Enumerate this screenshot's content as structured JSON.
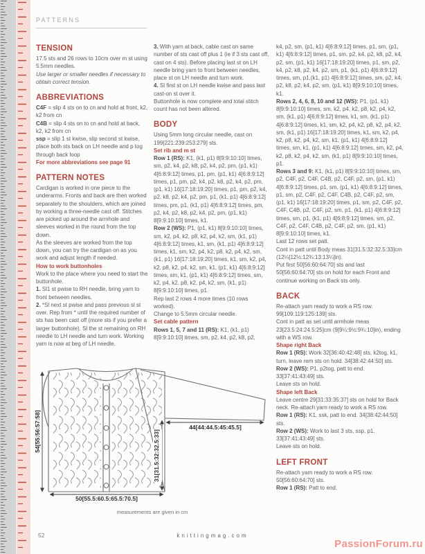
{
  "page": {
    "header": "PATTERNS",
    "page_number": "52",
    "footer_site": "knittingmag.com",
    "watermark": "PassionForum.ru"
  },
  "colors": {
    "heading": "#b2453e",
    "body": "#5c5c5f",
    "bold": "#4b4b4e",
    "tapegrey": "#d2d3d5",
    "tapepink": "#f6ddd7",
    "tickred": "#c4473f",
    "wm": "#f0948c"
  },
  "columns": [
    {
      "blocks": [
        {
          "type": "h1",
          "text": "TENSION"
        },
        {
          "type": "p",
          "segs": [
            {
              "t": "17.5 sts and 26 rows to 10cm over m st using 5.5mm needles."
            }
          ]
        },
        {
          "type": "p",
          "segs": [
            {
              "t": "Use larger or smaller needles if necessary to obtain correct tension.",
              "s": "i"
            }
          ]
        },
        {
          "type": "h1",
          "text": "ABBREVIATIONS"
        },
        {
          "type": "p",
          "segs": [
            {
              "t": "C4F",
              "s": "b"
            },
            {
              "t": " = slip 4 sts on to cn and hold at front, k2, k2 from cn"
            }
          ]
        },
        {
          "type": "p",
          "segs": [
            {
              "t": "C4B",
              "s": "b"
            },
            {
              "t": " = slip 4 sts on to cn and hold at back, k2, k2 from cn"
            }
          ]
        },
        {
          "type": "p",
          "segs": [
            {
              "t": "ssp",
              "s": "b"
            },
            {
              "t": " = slip 1 st kwise, slip second st kwise, place both sts back on LH needle and p tog through back loop"
            }
          ]
        },
        {
          "type": "sub",
          "text": "For more abbreviations see page 91"
        },
        {
          "type": "h1",
          "text": "PATTERN NOTES"
        },
        {
          "type": "p",
          "segs": [
            {
              "t": "Cardigan is worked in one piece to the underarms. Fronts and back are then worked separately to the shoulders, which are joined by working a three-needle cast off. Stitches are picked up around the armhole and sleeves worked in the round from the top down."
            }
          ]
        },
        {
          "type": "p",
          "segs": [
            {
              "t": "As the sleeves are worked from the top down, you can try the cardigan on as you work and adjust length if needed."
            }
          ]
        },
        {
          "type": "sub",
          "text": "How to work buttonholes"
        },
        {
          "type": "p",
          "segs": [
            {
              "t": "Work to the place where you need to start the buttonhole."
            }
          ]
        },
        {
          "type": "p",
          "segs": [
            {
              "t": "1.",
              "s": "b"
            },
            {
              "t": " Sl1 st pwise to RH needle, bring yarn to front between needles."
            }
          ]
        },
        {
          "type": "p",
          "segs": [
            {
              "t": "2.",
              "s": "b"
            },
            {
              "t": " *Sl next st pwise and pass previous sl st over. Rep from * until the required number of sts has been cast off (more sts if you prefer a larger buttonhole). Sl the st remaining on RH needle to LH needle and turn work. Working yarn is now at beg of LH needle."
            }
          ]
        }
      ]
    },
    {
      "blocks": [
        {
          "type": "p",
          "segs": [
            {
              "t": "3.",
              "s": "b"
            },
            {
              "t": " With yarn at back, cable cast on same number of sts cast off plus 1 (ie if 3 sts cast off, cast on 4 sts). Before placing last st on LH needle bring yarn to front between needles, place st on LH needle and turn work."
            }
          ]
        },
        {
          "type": "p",
          "segs": [
            {
              "t": "4.",
              "s": "b"
            },
            {
              "t": " Sl first st on LH needle kwise and pass last cast-on st over it."
            }
          ]
        },
        {
          "type": "p",
          "segs": [
            {
              "t": "Buttonhole is now complete and total stitch count has not been altered."
            }
          ]
        },
        {
          "type": "h1",
          "text": "BODY"
        },
        {
          "type": "p",
          "segs": [
            {
              "t": "Using 5mm long circular needle, cast on 199[221:239:253:279] sts."
            }
          ]
        },
        {
          "type": "sub",
          "text": "Set rib and m st"
        },
        {
          "type": "p",
          "segs": [
            {
              "t": "Row 1 (RS):",
              "s": "b"
            },
            {
              "t": " K1, (k1, p1) 8[9:9:10:10] times, sm, p2, k4, p2, k8, p2, k4, p2, pm, (p1, k1) 4[6:8:9:12] times, p1, pm, (p1, k1) 4[6:8:9:12] times, p1, pm, p2, k4, p2, k8, p2, k4, p2, pm, (p1, k1) 16[17:18:19:20] times, p1, pm, p2, k4, p2, k8, p2, k4, p2, pm, p1, (k1, p1) 4[6:8:9:12] times, pm, p1, (k1, p1) 4[6:8:9:12] times, pm, p2, k4, p2, k8, p2, k4, p2, pm, (p1, k1) 8[9:9:10:10] times, k1."
            }
          ]
        },
        {
          "type": "p",
          "segs": [
            {
              "t": "Row 2 (WS):",
              "s": "b"
            },
            {
              "t": " P1, (p1, k1) 8[9:9:10:10] times, sm, k2, p4, k2, p8, k2, p4, k2, sm, (k1, p1) 4[6:8:9:12] times, k1, sm, (k1, p1) 4[6:8:9:12] times, k1, sm, k2, p4, k2, p8, k2, p4, k2, sm, (k1, p1) 16[17:18:19:20] times, k1, sm, k2, p4, k2, p8, k2, p4, k2, sm, k1, (p1, k1) 4[6:8:9:12] times, sm, k1, (p1, k1) 4[6:8:9:12] times, sm, k2, p4, k2, p8, k2, p4, k2, sm, (k1, p1) 8[9:9:10:10] times, p1."
            }
          ]
        },
        {
          "type": "p",
          "segs": [
            {
              "t": "Rep last 2 rows 4 more times (10 rows worked)."
            }
          ]
        },
        {
          "type": "p",
          "segs": [
            {
              "t": "Change to 5.5mm circular needle."
            }
          ]
        },
        {
          "type": "sub",
          "text": "Set cable pattern"
        },
        {
          "type": "p",
          "segs": [
            {
              "t": "Rows 1, 5, 7 and 11 (RS):",
              "s": "b"
            },
            {
              "t": " K1, (k1, p1) 8[9:9:10:10] times, sm, p2, k4, p2, k8, p2,"
            }
          ]
        }
      ]
    },
    {
      "blocks": [
        {
          "type": "p",
          "segs": [
            {
              "t": "k4, p2, sm, (p1, k1) 4[6:8:9:12] times, p1, sm, (p1, k1) 4[6:8:9:12] times, p1, sm, p2, k4, p2, k8, p2, k4, p2, sm, (p1, k1) 16[17:18:19:20] times, p1, sm, p2, k4, p2, k8, p2, k4, p2, sm, p1, (k1, p1) 4[6:8:9:12] times, sm, p1,(k1, p1) 4[6:8:9:12] times, sm, p2, k4, p2, k8, p2, k4, p2, sm, (p1, k1) 8[9:9:10:10] times, k1."
            }
          ]
        },
        {
          "type": "p",
          "segs": [
            {
              "t": "Rows 2, 4, 6, 8, 10 and 12 (WS):",
              "s": "b"
            },
            {
              "t": " P1, (p1, k1) 8[9:9:10:10] times, sm, k2, p4, k2, p8, k2, p4, k2, sm, (k1, p1) 4[6:8:9:12] times, k1, sm, (k1, p1) 4[6:8:9:12] times, k1, sm, k2, p4, k2, p8, k2, p4, k2, sm, (k1, p1) 16[17:18:19:20] times, k1, sm, k2, p4, k2, p8, k2, p4, k2, sm, k1, (p1, k1) 4[6:8:9:12] times, sm, k1, (p1, k1) 4[6:8:9:12] times, sm, k2, p4, k2, p8, k2, p4, k2, sm, (k1, p1) 8[9:9:10:10] times, p1."
            }
          ]
        },
        {
          "type": "p",
          "segs": [
            {
              "t": "Rows 3 and 9:",
              "s": "b"
            },
            {
              "t": " K1, (k1, p1) 8[9:9:10:10] times, sm, p2, C4F, p2, C4F, C4B, p2, C4F, p2, sm, (p1, k1) 4[6:8:9:12] times, p1, sm, (p1, k1) 4[6:8:9:12] times, p1, sm, p2, C4F, p2, C4F, C4B, p2, C4F, p2, sm, (p1, k1) 16[17:18:19:20] times, p1, sm, p2, C4F, p2, C4F, C4B, p2, C4F, p2, sm, p1, (k1, p1) 4[6:8:9:12] times, sm, p1, (k1, p1) 4[6:8:9:12] times, sm, p2, C4F, p2, C4F, C4B, p2, C4F, p2, sm, (p1, k1) 8[9:9:10:10] times, k1."
            }
          ]
        },
        {
          "type": "p",
          "segs": [
            {
              "t": "Last 12 rows set patt."
            }
          ]
        },
        {
          "type": "p",
          "segs": [
            {
              "t": "Cont in patt until Body meas 31[31.5:32:32.5:33]cm (12¼[12½:12¾:13:13¼]in)."
            }
          ]
        },
        {
          "type": "p",
          "segs": [
            {
              "t": "Put first 50[56:60:64:70] sts and last 50[56:60:64:70] sts on hold for each Front and continue working on Back sts only."
            }
          ]
        },
        {
          "type": "h1",
          "text": "BACK"
        },
        {
          "type": "p",
          "segs": [
            {
              "t": "Re-attach yarn ready to work a RS row. 99[109:119:125:139] sts."
            }
          ]
        },
        {
          "type": "p",
          "segs": [
            {
              "t": "Cont in patt as set until armhole meas 23[23.5:24:24.5:25]cm (9[9¼:9½:9¾:10]in), ending with a WS row."
            }
          ]
        },
        {
          "type": "sub",
          "text": "Shape right Back"
        },
        {
          "type": "p",
          "segs": [
            {
              "t": "Row 1 (RS):",
              "s": "b"
            },
            {
              "t": " Work 32[36:40:42:48] sts, k2tog, k1, turn, leave rem sts on hold. 34[38:42:44:50] sts."
            }
          ]
        },
        {
          "type": "p",
          "segs": [
            {
              "t": "Row 2 (WS):",
              "s": "b"
            },
            {
              "t": " P1, p2tog, patt to end. 33[37:41:43:49] sts."
            }
          ]
        },
        {
          "type": "p",
          "segs": [
            {
              "t": "Leave sts on hold."
            }
          ]
        },
        {
          "type": "sub",
          "text": "Shape left Back"
        },
        {
          "type": "p",
          "segs": [
            {
              "t": "Leave centre 29[31:33:35:37] sts on hold for Back neck. Re-attach yarn ready to work a RS row."
            }
          ]
        },
        {
          "type": "p",
          "segs": [
            {
              "t": "Row 1 (RS):",
              "s": "b"
            },
            {
              "t": " K1, ssk, patt to end. 34[38:42:44:50] sts."
            }
          ]
        },
        {
          "type": "p",
          "segs": [
            {
              "t": "Row 2 (WS):",
              "s": "b"
            },
            {
              "t": " Work to last 3 sts, ssp, p1. 33[37:41:43:49] sts."
            }
          ]
        },
        {
          "type": "p",
          "segs": [
            {
              "t": "Leave sts on hold."
            }
          ]
        },
        {
          "type": "h1",
          "text": "LEFT FRONT"
        },
        {
          "type": "p",
          "segs": [
            {
              "t": "Re-attach yarn ready to work a RS row. 50[56:60:64:70] sts."
            }
          ]
        },
        {
          "type": "p",
          "segs": [
            {
              "t": "Row 1 (RS):",
              "s": "b"
            },
            {
              "t": " Patt to end."
            }
          ]
        }
      ]
    }
  ],
  "schematic": {
    "height_label": "54[55:56:57:58]",
    "length_label": "31[31.5:32:32.5:33]",
    "sleeve_label": "44[44:44.5:45:45.5]",
    "width_label": "50[55.5:60.5:65.5:70.5]",
    "caption": "measurements are given in cm"
  }
}
